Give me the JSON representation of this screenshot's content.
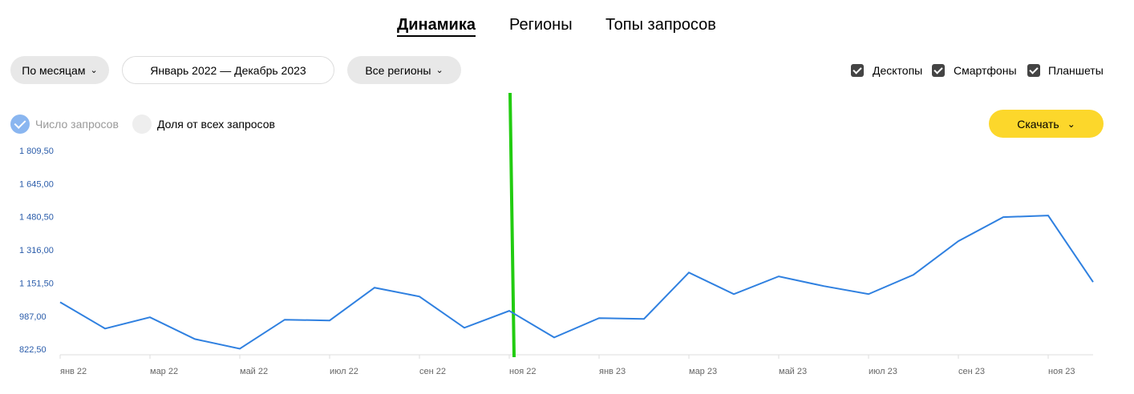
{
  "tabs": [
    "Динамика",
    "Регионы",
    "Топы запросов"
  ],
  "filters": {
    "period": "По месяцам",
    "range": "Январь 2022 — Декабрь 2023",
    "region": "Все регионы"
  },
  "devices": [
    "Десктопы",
    "Смартфоны",
    "Планшеты"
  ],
  "modes": [
    "Число запросов",
    "Доля от всех запросов"
  ],
  "download": "Скачать",
  "chart_data": {
    "type": "line",
    "categories": [
      "янв 22",
      null,
      "мар 22",
      null,
      "май 22",
      null,
      "июл 22",
      null,
      "сен 22",
      null,
      "ноя 22",
      null,
      "янв 23",
      null,
      "мар 23",
      null,
      "май 23",
      null,
      "июл 23",
      null,
      "сен 23",
      null,
      "ноя 23",
      null
    ],
    "values": [
      1061,
      930,
      986,
      878,
      830,
      974,
      970,
      1133,
      1089,
      934,
      1018,
      886,
      982,
      978,
      1208,
      1101,
      1189,
      1141,
      1101,
      1197,
      1364,
      1483,
      1491,
      1161
    ],
    "color": "#2f80e0",
    "ylim": [
      800,
      1809.5
    ],
    "yticks": [
      {
        "value": 822.5,
        "label": "822,50"
      },
      {
        "value": 987,
        "label": "987,00"
      },
      {
        "value": 1151.5,
        "label": "1 151,50"
      },
      {
        "value": 1316,
        "label": "1 316,00"
      },
      {
        "value": 1480.5,
        "label": "1 480,50"
      },
      {
        "value": 1645,
        "label": "1 645,00"
      },
      {
        "value": 1809.5,
        "label": "1 809,50"
      }
    ],
    "grid": false
  }
}
